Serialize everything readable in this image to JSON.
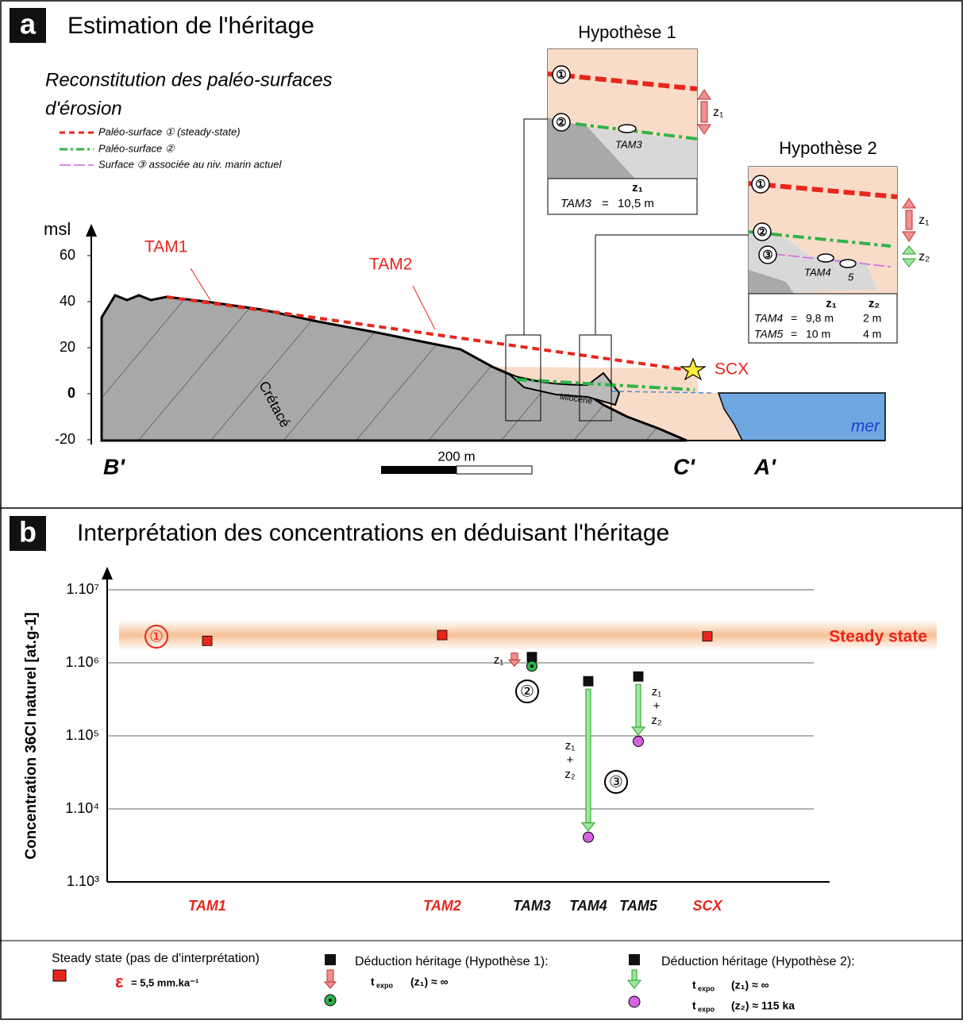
{
  "panel_a": {
    "letter": "a",
    "title": "Estimation de l'héritage",
    "subtitle_line1": "Reconstitution des paléo-surfaces",
    "subtitle_line2": "d'érosion",
    "legend": [
      "Paléo-surface ① (steady-state)",
      "Paléo-surface ②",
      "Surface ③ associée au niv. marin actuel"
    ],
    "y_label": "msl",
    "ylim": [
      -20,
      60
    ],
    "yticks": [
      60,
      40,
      20,
      0,
      -20
    ],
    "labels": {
      "tam1": "TAM1",
      "tam2": "TAM2",
      "cretace": "Crétacé",
      "miocene": "Miocène",
      "scx": "SCX",
      "mer": "mer",
      "b": "B'",
      "c": "C'",
      "a": "A'",
      "scale": "200 m"
    },
    "hyp1": {
      "title": "Hypothèse 1",
      "c1": "①",
      "c2": "②",
      "sample": "TAM3",
      "z1": "z₁",
      "header": "z₁",
      "rows": [
        [
          "TAM3",
          "=",
          "10,5 m"
        ]
      ]
    },
    "hyp2": {
      "title": "Hypothèse 2",
      "c1": "①",
      "c2": "②",
      "c3": "③",
      "sample": "TAM4",
      "sample2": "5",
      "z1": "z₁",
      "z2": "z₂",
      "header": [
        "z₁",
        "z₂"
      ],
      "rows": [
        [
          "TAM4",
          "=",
          "9,8 m",
          "2 m"
        ],
        [
          "TAM5",
          "=",
          "10 m",
          "4 m"
        ]
      ]
    }
  },
  "chart_data": {
    "type": "scatter",
    "letter": "b",
    "title": "Interprétation des concentrations en déduisant l'héritage",
    "y_label": "Concentration 36Cl naturel [at.g-1]",
    "log_scale": true,
    "grid": true,
    "ylim": [
      1000,
      10000000
    ],
    "yticks": [
      {
        "value": 10000000,
        "label": "1.10⁷"
      },
      {
        "value": 1000000,
        "label": "1.10⁶"
      },
      {
        "value": 100000,
        "label": "1.10⁵"
      },
      {
        "value": 10000,
        "label": "1.10⁴"
      },
      {
        "value": 1000,
        "label": "1.10³"
      }
    ],
    "categories": [
      "TAM1",
      "TAM2",
      "TAM3",
      "TAM4",
      "TAM5",
      "SCX"
    ],
    "category_colors": [
      "#e8261e",
      "#e8261e",
      "#111111",
      "#111111",
      "#111111",
      "#e8261e"
    ],
    "series": [
      {
        "name": "Steady state (pas de d'interprétation)",
        "color": "#e8261e",
        "marker": "square",
        "values": [
          2000000,
          2400000,
          null,
          null,
          null,
          2300000
        ]
      },
      {
        "color": "#111111",
        "marker": "square",
        "values": [
          null,
          null,
          1200000,
          560000,
          650000,
          null
        ]
      },
      {
        "name": "Déduction héritage (Hypothèse 1):",
        "color": "#2fb34a",
        "marker": "circle-dot",
        "values": [
          null,
          null,
          900000,
          null,
          null,
          null
        ]
      },
      {
        "name": "Déduction héritage (Hypothèse 2):",
        "color": "#d463e0",
        "marker": "circle",
        "values": [
          null,
          null,
          null,
          4100.0,
          84000,
          null
        ]
      }
    ],
    "annotations": {
      "c1": "①",
      "c2": "②",
      "c3": "③",
      "steady": "Steady state",
      "z1_tam3": "z₁",
      "z1_tam4": "z₁",
      "plus_tam4": "+",
      "z2_tam4": "z₂",
      "z1_tam5": "z₁",
      "plus_tam5": "+",
      "z2_tam5": "z₂"
    },
    "legend_text": {
      "eps": "ε",
      "eps_val": "= 5,5 mm.ka⁻¹",
      "t1": "t",
      "expo1": "expo",
      "h1": "(z₁)  ≈  ∞",
      "t2": "t",
      "expo2": "expo",
      "h2a": "(z₁)  ≈  ∞",
      "t3": "t",
      "expo3": "expo",
      "h2b": "(z₂)  ≈  115 ka"
    }
  }
}
